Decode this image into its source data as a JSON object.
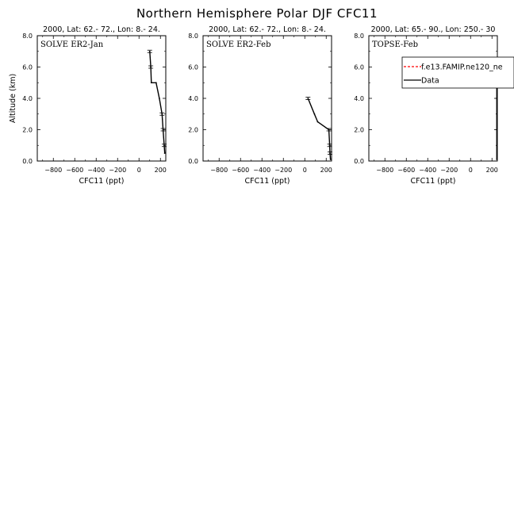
{
  "figure_title": "Northern Hemisphere Polar DJF CFC11",
  "colors": {
    "data_line": "#000000",
    "model_line": "#ff0000",
    "background": "#ffffff"
  },
  "chart_data": [
    {
      "type": "line",
      "subtitle": "2000, Lat: 62.- 72., Lon: 8.- 24.",
      "panel_label": "SOLVE ER2-Jan",
      "xlabel": "CFC11 (ppt)",
      "ylabel": "Altitude (km)",
      "xlim": [
        -950,
        250
      ],
      "ylim": [
        0,
        8
      ],
      "x_ticks": [
        -800,
        -600,
        -400,
        -200,
        0,
        200
      ],
      "x_tick_labels": [
        "−800",
        "−600",
        "−400",
        "−200",
        "0",
        "200"
      ],
      "y_ticks": [
        0,
        2,
        4,
        6,
        8
      ],
      "y_tick_labels": [
        "0.0",
        "2.0",
        "4.0",
        "6.0",
        "8.0"
      ],
      "series": [
        {
          "name": "Data",
          "x": [
            240,
            235,
            225,
            215,
            190,
            160,
            115,
            110,
            100
          ],
          "y": [
            0.5,
            1.0,
            2.0,
            3.0,
            4.0,
            5.0,
            5.0,
            6.0,
            7.0
          ],
          "error_bar_y": [
            7.0,
            6.0,
            3.0,
            2.0,
            1.0
          ]
        }
      ]
    },
    {
      "type": "line",
      "subtitle": "2000, Lat: 62.- 72., Lon: 8.- 24.",
      "panel_label": "SOLVE ER2-Feb",
      "xlabel": "CFC11 (ppt)",
      "ylabel": "",
      "xlim": [
        -950,
        250
      ],
      "ylim": [
        0,
        8
      ],
      "x_ticks": [
        -800,
        -600,
        -400,
        -200,
        0,
        200
      ],
      "x_tick_labels": [
        "−800",
        "−600",
        "−400",
        "−200",
        "0",
        "200"
      ],
      "y_ticks": [
        0,
        2,
        4,
        6,
        8
      ],
      "y_tick_labels": [
        "0.0",
        "2.0",
        "4.0",
        "6.0",
        "8.0"
      ],
      "series": [
        {
          "name": "Data",
          "x": [
            240,
            235,
            232,
            225,
            120,
            90,
            30
          ],
          "y": [
            0.1,
            0.5,
            1.0,
            2.0,
            2.5,
            3.0,
            4.0
          ],
          "error_bar_y": [
            4.0,
            2.0,
            1.0,
            0.5
          ]
        }
      ]
    },
    {
      "type": "line",
      "subtitle": "2000, Lat: 65.- 90., Lon: 250.- 30",
      "panel_label": "TOPSE-Feb",
      "xlabel": "CFC11 (ppt)",
      "ylabel": "",
      "xlim": [
        -950,
        250
      ],
      "ylim": [
        0,
        8
      ],
      "x_ticks": [
        -800,
        -600,
        -400,
        -200,
        0,
        200
      ],
      "x_tick_labels": [
        "−800",
        "−600",
        "−400",
        "−200",
        "0",
        "200"
      ],
      "y_ticks": [
        0,
        2,
        4,
        6,
        8
      ],
      "y_tick_labels": [
        "0.0",
        "2.0",
        "4.0",
        "6.0",
        "8.0"
      ],
      "legend": [
        {
          "label": "f.e13.FAMIP.ne120_ne",
          "style": "dashed",
          "color": "#ff0000"
        },
        {
          "label": "Data",
          "style": "solid",
          "color": "#000000"
        }
      ],
      "series": [
        {
          "name": "Data",
          "x": [
            245,
            245,
            245,
            245,
            245,
            245,
            245
          ],
          "y": [
            0.1,
            1.0,
            2.0,
            3.0,
            4.0,
            5.0,
            6.0
          ],
          "error_bar_y": []
        }
      ]
    }
  ]
}
